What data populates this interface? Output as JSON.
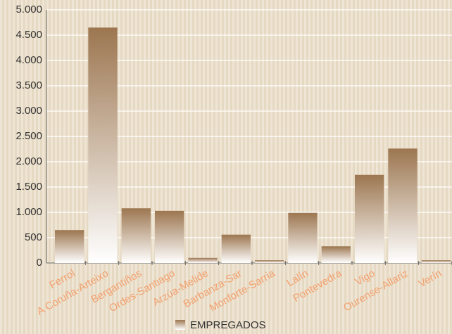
{
  "chart_data": {
    "type": "bar",
    "categories": [
      "Ferrol",
      "A Coruña-Arteixo",
      "Bergantiños",
      "Ordes-Santiago",
      "Arzúa-Melide",
      "Barbanza-Sar",
      "Monforte-Sarria",
      "Lalín",
      "Pontevedra",
      "Vigo",
      "Ourense-Allariz",
      "Verín"
    ],
    "series": [
      {
        "name": "EMPREGADOS",
        "color": "#9c7650",
        "values": [
          650,
          4650,
          1080,
          1030,
          100,
          560,
          55,
          990,
          330,
          1740,
          2260,
          55
        ]
      }
    ],
    "ylim": [
      0,
      5000
    ],
    "yticks": [
      0,
      500,
      {
        "value": 1000,
        "label": "1.000"
      },
      {
        "value": 1500,
        "label": "1.500"
      },
      {
        "value": 2000,
        "label": "2.000"
      },
      {
        "value": 2500,
        "label": "2.500"
      },
      {
        "value": 3000,
        "label": "3.000"
      },
      {
        "value": 3500,
        "label": "3.500"
      },
      {
        "value": 4000,
        "label": "4.000"
      },
      {
        "value": 4500,
        "label": "4.500"
      },
      {
        "value": 5000,
        "label": "5.000"
      }
    ],
    "grid": true
  }
}
